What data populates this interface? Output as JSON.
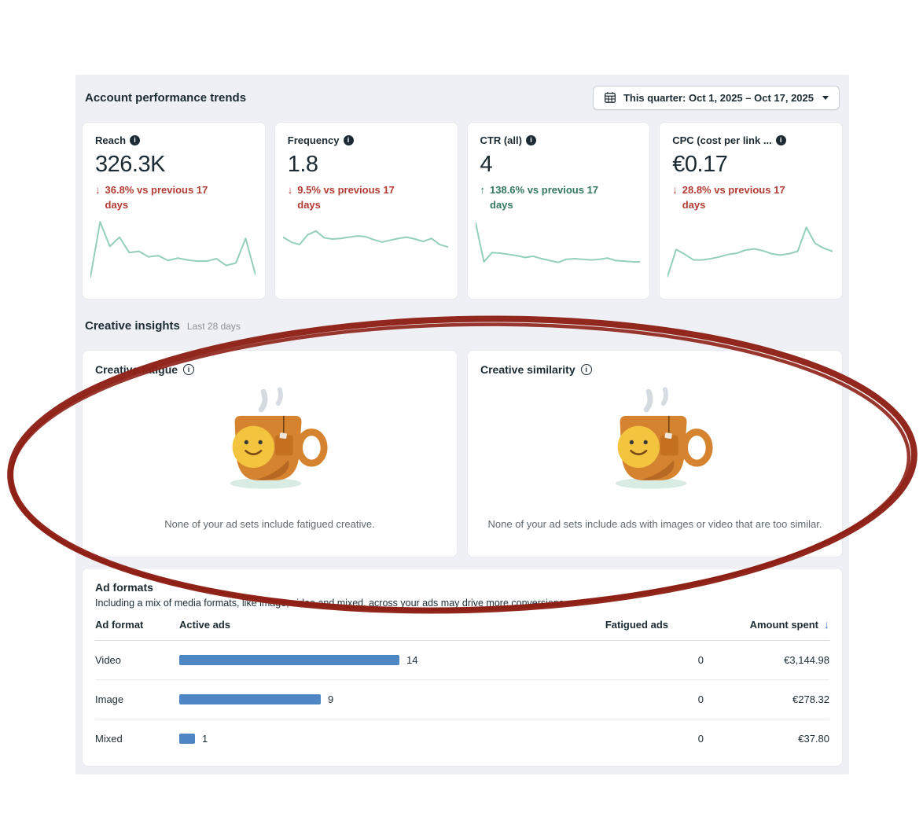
{
  "header": {
    "title": "Account performance trends",
    "date_range": "This quarter: Oct 1, 2025 – Oct 17, 2025"
  },
  "metrics": [
    {
      "label": "Reach",
      "value": "326.3K",
      "delta": "36.8% vs previous 17 days",
      "direction": "down",
      "sentiment": "negative"
    },
    {
      "label": "Frequency",
      "value": "1.8",
      "delta": "9.5% vs previous 17 days",
      "direction": "down",
      "sentiment": "negative"
    },
    {
      "label": "CTR (all)",
      "value": "4",
      "delta": "138.6% vs previous 17 days",
      "direction": "up",
      "sentiment": "positive"
    },
    {
      "label": "CPC (cost per link ...",
      "value": "€0.17",
      "delta": "28.8% vs previous 17 days",
      "direction": "down",
      "sentiment": "negative"
    }
  ],
  "creative_insights": {
    "title": "Creative insights",
    "subtitle": "Last 28 days",
    "cards": [
      {
        "title": "Creative fatigue",
        "message": "None of your ad sets include fatigued creative."
      },
      {
        "title": "Creative similarity",
        "message": "None of your ad sets include ads with images or video that are too similar."
      }
    ]
  },
  "ad_formats": {
    "title": "Ad formats",
    "description": "Including a mix of media formats, like image, video and mixed, across your ads may drive more conversions.",
    "columns": {
      "format": "Ad format",
      "active": "Active ads",
      "fatigued": "Fatigued ads",
      "amount": "Amount spent"
    },
    "sort_icon": "↓",
    "rows": [
      {
        "format": "Video",
        "active_ads": 14,
        "fatigued_ads": "0",
        "amount_spent": "€3,144.98"
      },
      {
        "format": "Image",
        "active_ads": 9,
        "fatigued_ads": "0",
        "amount_spent": "€278.32"
      },
      {
        "format": "Mixed",
        "active_ads": 1,
        "fatigued_ads": "0",
        "amount_spent": "€37.80"
      }
    ]
  },
  "chart_data": [
    {
      "type": "line",
      "name": "reach-trend",
      "scale": "relative-0-100 (no axes shown)",
      "color": "#93cfbb",
      "values": [
        5,
        95,
        55,
        70,
        45,
        47,
        38,
        40,
        32,
        36,
        33,
        31,
        31,
        35,
        24,
        28,
        68,
        10
      ]
    },
    {
      "type": "line",
      "name": "frequency-trend",
      "scale": "relative-0-100 (no axes shown)",
      "color": "#93cfbb",
      "values": [
        70,
        62,
        58,
        74,
        80,
        69,
        67,
        68,
        70,
        72,
        71,
        66,
        62,
        65,
        68,
        70,
        67,
        63,
        68,
        58,
        54
      ]
    },
    {
      "type": "line",
      "name": "ctr-trend",
      "scale": "relative-0-100 (no axes shown)",
      "color": "#93cfbb",
      "values": [
        93,
        30,
        45,
        44,
        42,
        40,
        37,
        39,
        35,
        32,
        29,
        34,
        35,
        34,
        33,
        34,
        36,
        32,
        31,
        30,
        30
      ]
    },
    {
      "type": "line",
      "name": "cpc-trend",
      "scale": "relative-0-100 (no axes shown)",
      "color": "#93cfbb",
      "values": [
        6,
        50,
        42,
        33,
        33,
        35,
        38,
        42,
        44,
        49,
        51,
        48,
        43,
        41,
        43,
        47,
        86,
        60,
        52,
        47
      ]
    },
    {
      "type": "bar",
      "name": "active-ads-by-format",
      "categories": [
        "Video",
        "Image",
        "Mixed"
      ],
      "values": [
        14,
        9,
        1
      ],
      "color": "#4e86c4",
      "orientation": "horizontal"
    }
  ],
  "annotation": {
    "shape": "hand-drawn ellipse",
    "color": "#8e2016",
    "target": "Creative insights cards"
  },
  "colors": {
    "panel_bg": "#eef0f6",
    "negative": "#b23b33",
    "positive": "#33785f",
    "sparkline": "#93cfbb",
    "bar": "#4e86c4",
    "sort_arrow": "#4a77d4",
    "annotation": "#8e2016"
  }
}
